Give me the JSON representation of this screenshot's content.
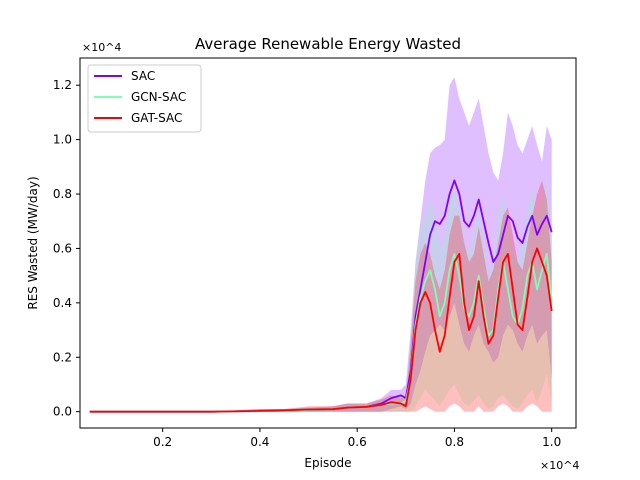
{
  "chart_data": {
    "type": "line",
    "title": "Average Renewable Energy Wasted",
    "xlabel": "Episode",
    "ylabel": "RES Wasted (MW/day)",
    "x_multiplier": "×10^4",
    "y_multiplier": "×10^4",
    "xlim": [
      0.03,
      1.05
    ],
    "ylim": [
      -0.06,
      1.3
    ],
    "xticks": [
      0.2,
      0.4,
      0.6,
      0.8,
      1.0
    ],
    "xtick_labels": [
      "0.2",
      "0.4",
      "0.6",
      "0.8",
      "1.0"
    ],
    "yticks": [
      0.0,
      0.2,
      0.4,
      0.6,
      0.8,
      1.0,
      1.2
    ],
    "ytick_labels": [
      "0.0",
      "0.2",
      "0.4",
      "0.6",
      "0.8",
      "1.0",
      "1.2"
    ],
    "grid": false,
    "legend_position": "top-left",
    "series": [
      {
        "name": "SAC",
        "color": "#8000ff",
        "x": [
          0.05,
          0.1,
          0.2,
          0.3,
          0.4,
          0.45,
          0.5,
          0.55,
          0.58,
          0.62,
          0.65,
          0.67,
          0.69,
          0.7,
          0.71,
          0.72,
          0.73,
          0.74,
          0.75,
          0.76,
          0.77,
          0.78,
          0.79,
          0.8,
          0.81,
          0.82,
          0.83,
          0.84,
          0.85,
          0.86,
          0.87,
          0.88,
          0.89,
          0.9,
          0.91,
          0.92,
          0.93,
          0.94,
          0.95,
          0.96,
          0.97,
          0.98,
          0.99,
          1.0
        ],
        "y": [
          0.0,
          0.0,
          0.0,
          0.0,
          0.002,
          0.004,
          0.006,
          0.008,
          0.015,
          0.018,
          0.03,
          0.05,
          0.06,
          0.05,
          0.15,
          0.35,
          0.45,
          0.55,
          0.65,
          0.7,
          0.69,
          0.72,
          0.8,
          0.85,
          0.8,
          0.7,
          0.68,
          0.72,
          0.78,
          0.7,
          0.62,
          0.55,
          0.58,
          0.65,
          0.72,
          0.7,
          0.64,
          0.62,
          0.68,
          0.72,
          0.65,
          0.69,
          0.72,
          0.66
        ],
        "lower": [
          0.0,
          0.0,
          0.0,
          0.0,
          0.0,
          0.0,
          0.0,
          0.0,
          0.0,
          0.0,
          0.0,
          0.01,
          0.02,
          0.01,
          0.03,
          0.1,
          0.15,
          0.22,
          0.28,
          0.3,
          0.32,
          0.3,
          0.35,
          0.4,
          0.32,
          0.25,
          0.22,
          0.28,
          0.32,
          0.25,
          0.22,
          0.18,
          0.2,
          0.28,
          0.32,
          0.3,
          0.25,
          0.22,
          0.28,
          0.32,
          0.25,
          0.28,
          0.3,
          0.12
        ],
        "upper": [
          0.0,
          0.0,
          0.0,
          0.0,
          0.01,
          0.01,
          0.015,
          0.02,
          0.03,
          0.03,
          0.05,
          0.08,
          0.08,
          0.1,
          0.3,
          0.55,
          0.7,
          0.85,
          0.95,
          0.97,
          0.98,
          1.0,
          1.2,
          1.23,
          1.15,
          1.1,
          1.05,
          1.1,
          1.15,
          1.05,
          0.95,
          0.88,
          0.85,
          0.95,
          1.1,
          1.05,
          0.98,
          0.95,
          1.0,
          1.05,
          0.98,
          0.92,
          1.05,
          1.0
        ]
      },
      {
        "name": "GCN-SAC",
        "color": "#80ffb4",
        "x": [
          0.05,
          0.1,
          0.2,
          0.3,
          0.4,
          0.45,
          0.5,
          0.55,
          0.58,
          0.62,
          0.65,
          0.67,
          0.69,
          0.7,
          0.71,
          0.72,
          0.73,
          0.74,
          0.75,
          0.76,
          0.77,
          0.78,
          0.79,
          0.8,
          0.81,
          0.82,
          0.83,
          0.84,
          0.85,
          0.86,
          0.87,
          0.88,
          0.89,
          0.9,
          0.91,
          0.92,
          0.93,
          0.94,
          0.95,
          0.96,
          0.97,
          0.98,
          0.99,
          1.0
        ],
        "y": [
          0.0,
          0.0,
          0.0,
          0.0,
          0.002,
          0.004,
          0.006,
          0.008,
          0.015,
          0.018,
          0.025,
          0.03,
          0.03,
          0.04,
          0.12,
          0.32,
          0.42,
          0.48,
          0.52,
          0.45,
          0.35,
          0.4,
          0.52,
          0.58,
          0.5,
          0.38,
          0.35,
          0.4,
          0.5,
          0.38,
          0.28,
          0.3,
          0.45,
          0.55,
          0.45,
          0.35,
          0.32,
          0.38,
          0.5,
          0.55,
          0.45,
          0.52,
          0.58,
          0.4
        ],
        "lower": [
          0.0,
          0.0,
          0.0,
          0.0,
          0.0,
          0.0,
          0.0,
          0.0,
          0.0,
          0.0,
          0.0,
          0.0,
          0.0,
          0.0,
          0.0,
          0.02,
          0.05,
          0.08,
          0.06,
          0.04,
          0.02,
          0.05,
          0.08,
          0.1,
          0.06,
          0.03,
          0.02,
          0.04,
          0.06,
          0.03,
          0.01,
          0.02,
          0.05,
          0.06,
          0.04,
          0.02,
          0.01,
          0.03,
          0.06,
          0.08,
          0.03,
          0.08,
          0.14,
          0.03
        ],
        "upper": [
          0.0,
          0.0,
          0.0,
          0.0,
          0.01,
          0.01,
          0.015,
          0.02,
          0.03,
          0.03,
          0.04,
          0.05,
          0.05,
          0.07,
          0.28,
          0.55,
          0.68,
          0.72,
          0.78,
          0.72,
          0.6,
          0.65,
          0.78,
          0.82,
          0.75,
          0.62,
          0.58,
          0.65,
          0.75,
          0.62,
          0.5,
          0.55,
          0.72,
          0.8,
          0.7,
          0.58,
          0.55,
          0.62,
          0.75,
          0.82,
          0.72,
          0.78,
          0.85,
          0.65
        ]
      },
      {
        "name": "GAT-SAC",
        "color": "#ff0000",
        "x": [
          0.05,
          0.1,
          0.2,
          0.3,
          0.4,
          0.45,
          0.5,
          0.55,
          0.58,
          0.62,
          0.65,
          0.67,
          0.69,
          0.7,
          0.71,
          0.72,
          0.73,
          0.74,
          0.75,
          0.76,
          0.77,
          0.78,
          0.79,
          0.8,
          0.81,
          0.82,
          0.83,
          0.84,
          0.85,
          0.86,
          0.87,
          0.88,
          0.89,
          0.9,
          0.91,
          0.92,
          0.93,
          0.94,
          0.95,
          0.96,
          0.97,
          0.98,
          0.99,
          1.0
        ],
        "y": [
          0.0,
          0.0,
          0.0,
          0.0,
          0.003,
          0.005,
          0.008,
          0.009,
          0.015,
          0.018,
          0.025,
          0.035,
          0.03,
          0.02,
          0.12,
          0.3,
          0.4,
          0.44,
          0.4,
          0.3,
          0.22,
          0.28,
          0.42,
          0.55,
          0.58,
          0.4,
          0.3,
          0.35,
          0.48,
          0.35,
          0.25,
          0.28,
          0.42,
          0.55,
          0.58,
          0.45,
          0.32,
          0.3,
          0.42,
          0.55,
          0.6,
          0.55,
          0.5,
          0.37
        ],
        "lower": [
          0.0,
          0.0,
          0.0,
          0.0,
          0.0,
          0.0,
          0.0,
          0.0,
          0.0,
          0.0,
          0.0,
          0.0,
          0.0,
          0.0,
          0.0,
          0.0,
          0.01,
          0.02,
          0.01,
          0.0,
          0.0,
          0.0,
          0.02,
          0.03,
          0.02,
          0.0,
          0.0,
          0.0,
          0.02,
          0.0,
          0.0,
          0.0,
          0.02,
          0.03,
          0.02,
          0.0,
          0.0,
          0.0,
          0.02,
          0.03,
          0.02,
          0.0,
          0.0,
          0.0
        ],
        "upper": [
          0.0,
          0.0,
          0.0,
          0.0,
          0.01,
          0.01,
          0.02,
          0.02,
          0.03,
          0.03,
          0.045,
          0.06,
          0.05,
          0.05,
          0.25,
          0.48,
          0.58,
          0.62,
          0.58,
          0.5,
          0.45,
          0.52,
          0.65,
          0.72,
          0.72,
          0.62,
          0.55,
          0.58,
          0.68,
          0.58,
          0.48,
          0.52,
          0.62,
          0.72,
          0.75,
          0.65,
          0.55,
          0.52,
          0.62,
          0.72,
          0.8,
          0.85,
          0.78,
          0.55
        ]
      }
    ]
  }
}
